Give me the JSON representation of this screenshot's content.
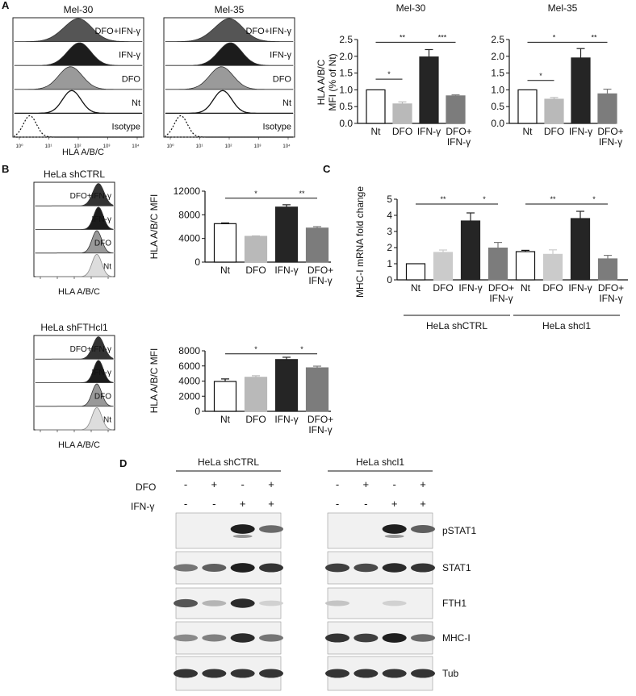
{
  "panels": {
    "A": "A",
    "B": "B",
    "C": "C",
    "D": "D"
  },
  "flow_A": [
    {
      "title": "Mel-30",
      "rows": [
        "DFO+IFN-γ",
        "IFN-γ",
        "DFO",
        "Nt",
        "Isotype"
      ],
      "xlabel": "HLA A/B/C"
    },
    {
      "title": "Mel-35",
      "rows": [
        "DFO+IFN-γ",
        "IFN-γ",
        "DFO",
        "Nt",
        "Isotype"
      ]
    }
  ],
  "flow_B": [
    {
      "title": "HeLa shCTRL",
      "rows": [
        "DFO+IFN-γ",
        "IFN-γ",
        "DFO",
        "Nt"
      ],
      "xlabel": "HLA A/B/C"
    },
    {
      "title": "HeLa shFTHcl1",
      "rows": [
        "DFO+IFN-γ",
        "IFN-γ",
        "DFO",
        "Nt"
      ],
      "xlabel": "HLA A/B/C"
    }
  ],
  "colors": {
    "white": "#ffffff",
    "light": "#c4c4c4",
    "mid": "#b0b0b0",
    "dark": "#252525",
    "medium": "#7c7c7c"
  },
  "chart_data": [
    {
      "id": "A-Mel-30",
      "type": "bar",
      "title": "Mel-30",
      "ylabel": "HLA A/B/C MFI (% of Nt)",
      "ylim": [
        0,
        2.5
      ],
      "yticks": [
        "0.0",
        "0.5",
        "1.0",
        "1.5",
        "2.0",
        "2.5"
      ],
      "categories": [
        "Nt",
        "DFO",
        "IFN-γ",
        "DFO+ IFN-γ"
      ],
      "values": [
        1.0,
        0.58,
        1.98,
        0.82
      ],
      "errors": [
        0.0,
        0.06,
        0.22,
        0.03
      ],
      "sig": [
        {
          "from": 0,
          "to": 2,
          "label": "**",
          "y": 2.42
        },
        {
          "from": 2,
          "to": 3,
          "label": "***",
          "y": 2.42
        },
        {
          "from": 0,
          "to": 1,
          "label": "*",
          "y": 1.32
        }
      ]
    },
    {
      "id": "A-Mel-35",
      "type": "bar",
      "title": "Mel-35",
      "ylabel": "",
      "ylim": [
        0,
        2.5
      ],
      "yticks": [
        "0.0",
        "0.5",
        "1.0",
        "1.5",
        "2.0",
        "2.5"
      ],
      "categories": [
        "Nt",
        "DFO",
        "IFN-γ",
        "DFO+ IFN-γ"
      ],
      "values": [
        1.0,
        0.72,
        1.95,
        0.88
      ],
      "errors": [
        0.0,
        0.05,
        0.28,
        0.14
      ],
      "sig": [
        {
          "from": 0,
          "to": 2,
          "label": "*",
          "y": 2.42
        },
        {
          "from": 2,
          "to": 3,
          "label": "**",
          "y": 2.42
        },
        {
          "from": 0,
          "to": 1,
          "label": "*",
          "y": 1.28
        }
      ]
    },
    {
      "id": "B-shCTRL",
      "type": "bar",
      "ylabel": "HLA A/B/C MFI",
      "ylim": [
        0,
        12000
      ],
      "yticks": [
        "0",
        "4000",
        "8000",
        "12000"
      ],
      "categories": [
        "Nt",
        "DFO",
        "IFN-γ",
        "DFO+ IFN-γ"
      ],
      "values": [
        6500,
        4350,
        9300,
        5750
      ],
      "errors": [
        120,
        80,
        400,
        250
      ],
      "sig": [
        {
          "from": 0,
          "to": 2,
          "label": "*",
          "y": 10800
        },
        {
          "from": 2,
          "to": 3,
          "label": "**",
          "y": 10800
        }
      ]
    },
    {
      "id": "B-shFTHcl1",
      "type": "bar",
      "ylabel": "HLA A/B/C MFI",
      "ylim": [
        0,
        8000
      ],
      "yticks": [
        "0",
        "2000",
        "4000",
        "6000",
        "8000"
      ],
      "categories": [
        "Nt",
        "DFO",
        "IFN-γ",
        "DFO+ IFN-γ"
      ],
      "values": [
        3950,
        4500,
        6850,
        5750
      ],
      "errors": [
        330,
        200,
        300,
        220
      ],
      "sig": [
        {
          "from": 0,
          "to": 2,
          "label": "*",
          "y": 7600
        },
        {
          "from": 2,
          "to": 3,
          "label": "*",
          "y": 7600
        }
      ]
    },
    {
      "id": "C",
      "type": "bar",
      "ylabel": "MHC-I mRNA fold change",
      "ylim": [
        0,
        5
      ],
      "yticks": [
        "0",
        "1",
        "2",
        "3",
        "4",
        "5"
      ],
      "categories": [
        "Nt",
        "DFO",
        "IFN-γ",
        "DFO+ IFN-γ",
        "Nt",
        "DFO",
        "IFN-γ",
        "DFO+ IFN-γ"
      ],
      "values": [
        1.0,
        1.7,
        3.65,
        1.97,
        1.75,
        1.58,
        3.8,
        1.3
      ],
      "errors": [
        0.0,
        0.15,
        0.5,
        0.35,
        0.08,
        0.28,
        0.45,
        0.22
      ],
      "groups": [
        "HeLa shCTRL",
        "HeLa shcl1"
      ],
      "sig": [
        {
          "from": 0,
          "to": 2,
          "label": "**",
          "y": 4.7
        },
        {
          "from": 2,
          "to": 3,
          "label": "*",
          "y": 4.7
        },
        {
          "from": 4,
          "to": 6,
          "label": "**",
          "y": 4.7
        },
        {
          "from": 6,
          "to": 7,
          "label": "*",
          "y": 4.7
        }
      ]
    }
  ],
  "blot_D": {
    "groups": [
      "HeLa shCTRL",
      "HeLa shcl1"
    ],
    "row_labels": [
      "DFO",
      "IFN-γ"
    ],
    "dfo": [
      "-",
      "+",
      "-",
      "+"
    ],
    "ifn": [
      "-",
      "-",
      "+",
      "+"
    ],
    "proteins": [
      "pSTAT1",
      "STAT1",
      "FTH1",
      "MHC-I",
      "Tub"
    ],
    "intensity_left": [
      [
        0,
        0,
        0.95,
        0.6
      ],
      [
        0.55,
        0.65,
        0.95,
        0.85
      ],
      [
        0.7,
        0.25,
        0.9,
        0.12
      ],
      [
        0.45,
        0.5,
        0.9,
        0.55
      ],
      [
        0.85,
        0.85,
        0.85,
        0.85
      ]
    ],
    "intensity_right": [
      [
        0,
        0,
        0.95,
        0.65
      ],
      [
        0.8,
        0.75,
        0.9,
        0.85
      ],
      [
        0.18,
        0,
        0.12,
        0
      ],
      [
        0.85,
        0.8,
        0.95,
        0.6
      ],
      [
        0.85,
        0.85,
        0.85,
        0.85
      ]
    ]
  }
}
